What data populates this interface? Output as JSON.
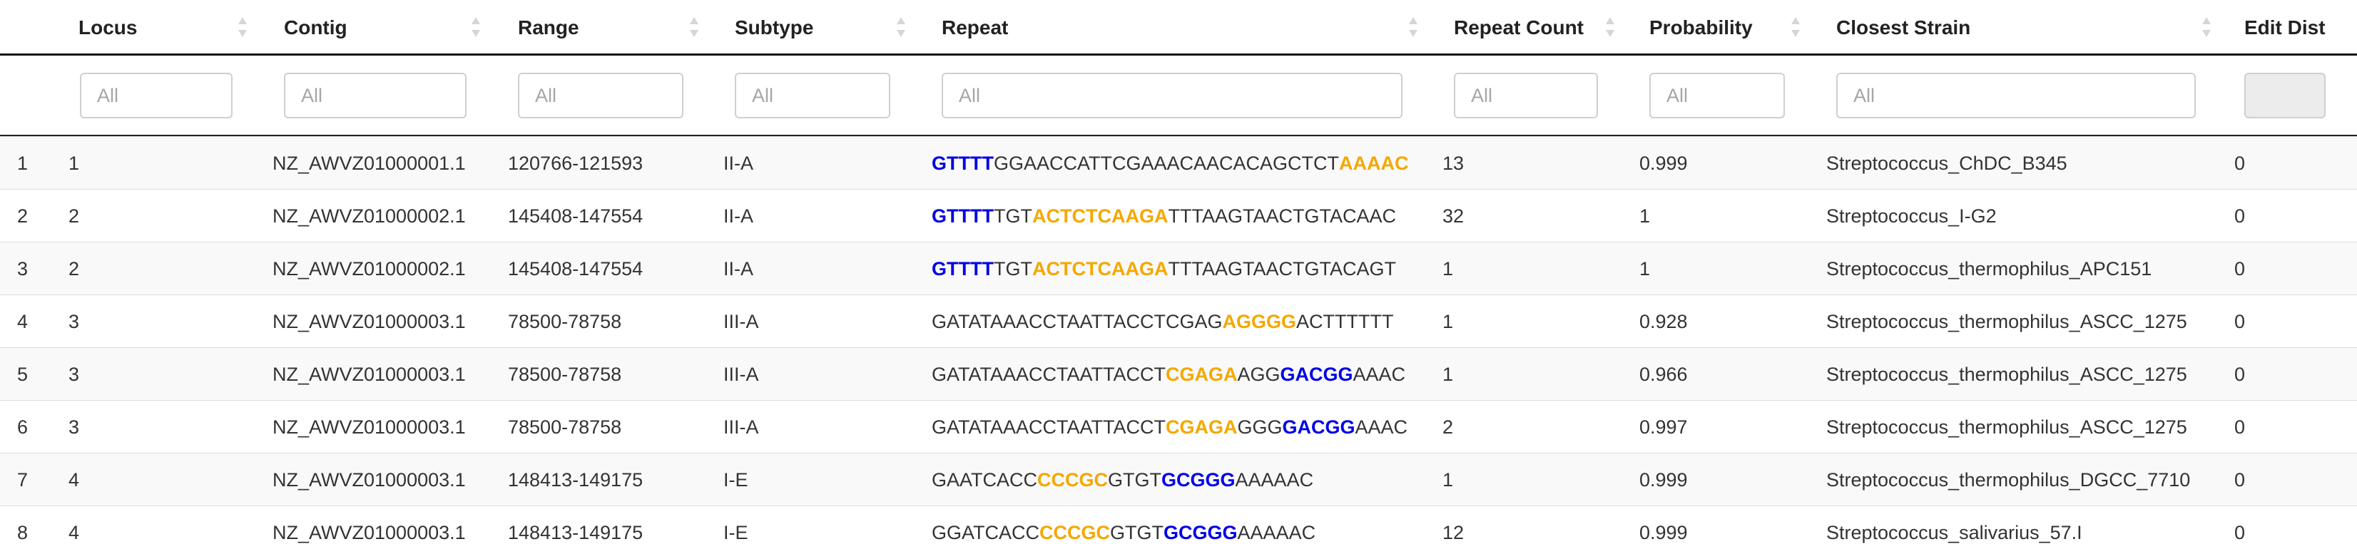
{
  "table": {
    "columns": [
      {
        "key": "index",
        "label": ""
      },
      {
        "key": "locus",
        "label": "Locus"
      },
      {
        "key": "contig",
        "label": "Contig"
      },
      {
        "key": "range",
        "label": "Range"
      },
      {
        "key": "subtype",
        "label": "Subtype"
      },
      {
        "key": "repeat",
        "label": "Repeat"
      },
      {
        "key": "repeat_count",
        "label": "Repeat Count"
      },
      {
        "key": "probability",
        "label": "Probability"
      },
      {
        "key": "closest_strain",
        "label": "Closest Strain"
      },
      {
        "key": "edit_dist",
        "label": "Edit Dist"
      }
    ],
    "filter_placeholder": "All",
    "highlight_colors": {
      "blue": "#0000e6",
      "orange": "#f5a700"
    },
    "rows": [
      {
        "index": "1",
        "locus": "1",
        "contig": "NZ_AWVZ01000001.1",
        "range": "120766-121593",
        "subtype": "II-A",
        "repeat": [
          {
            "text": "GTTTT",
            "style": "blue"
          },
          {
            "text": "GGAACCATTCGAAACAACACAGCTCT",
            "style": ""
          },
          {
            "text": "AAAAC",
            "style": "orange"
          }
        ],
        "repeat_count": "13",
        "probability": "0.999",
        "closest_strain": "Streptococcus_ChDC_B345",
        "edit_dist": "0"
      },
      {
        "index": "2",
        "locus": "2",
        "contig": "NZ_AWVZ01000002.1",
        "range": "145408-147554",
        "subtype": "II-A",
        "repeat": [
          {
            "text": "GTTTT",
            "style": "blue"
          },
          {
            "text": "TGT",
            "style": ""
          },
          {
            "text": "ACTCTCAAGA",
            "style": "orange"
          },
          {
            "text": "TTTAAGTAACTGTACAAC",
            "style": ""
          }
        ],
        "repeat_count": "32",
        "probability": "1",
        "closest_strain": "Streptococcus_I-G2",
        "edit_dist": "0"
      },
      {
        "index": "3",
        "locus": "2",
        "contig": "NZ_AWVZ01000002.1",
        "range": "145408-147554",
        "subtype": "II-A",
        "repeat": [
          {
            "text": "GTTTT",
            "style": "blue"
          },
          {
            "text": "TGT",
            "style": ""
          },
          {
            "text": "ACTCTCAAGA",
            "style": "orange"
          },
          {
            "text": "TTTAAGTAACTGTACAGT",
            "style": ""
          }
        ],
        "repeat_count": "1",
        "probability": "1",
        "closest_strain": "Streptococcus_thermophilus_APC151",
        "edit_dist": "0"
      },
      {
        "index": "4",
        "locus": "3",
        "contig": "NZ_AWVZ01000003.1",
        "range": "78500-78758",
        "subtype": "III-A",
        "repeat": [
          {
            "text": "GATATAAACCTAATTACCTCGAG",
            "style": ""
          },
          {
            "text": "AGGGG",
            "style": "orange"
          },
          {
            "text": "ACTTTTTT",
            "style": ""
          }
        ],
        "repeat_count": "1",
        "probability": "0.928",
        "closest_strain": "Streptococcus_thermophilus_ASCC_1275",
        "edit_dist": "0"
      },
      {
        "index": "5",
        "locus": "3",
        "contig": "NZ_AWVZ01000003.1",
        "range": "78500-78758",
        "subtype": "III-A",
        "repeat": [
          {
            "text": "GATATAAACCTAATTACCT",
            "style": ""
          },
          {
            "text": "CGAGA",
            "style": "orange"
          },
          {
            "text": "AGG",
            "style": ""
          },
          {
            "text": "GACGG",
            "style": "blue"
          },
          {
            "text": "AAAC",
            "style": ""
          }
        ],
        "repeat_count": "1",
        "probability": "0.966",
        "closest_strain": "Streptococcus_thermophilus_ASCC_1275",
        "edit_dist": "0"
      },
      {
        "index": "6",
        "locus": "3",
        "contig": "NZ_AWVZ01000003.1",
        "range": "78500-78758",
        "subtype": "III-A",
        "repeat": [
          {
            "text": "GATATAAACCTAATTACCT",
            "style": ""
          },
          {
            "text": "CGAGA",
            "style": "orange"
          },
          {
            "text": "GGG",
            "style": ""
          },
          {
            "text": "GACGG",
            "style": "blue"
          },
          {
            "text": "AAAC",
            "style": ""
          }
        ],
        "repeat_count": "2",
        "probability": "0.997",
        "closest_strain": "Streptococcus_thermophilus_ASCC_1275",
        "edit_dist": "0"
      },
      {
        "index": "7",
        "locus": "4",
        "contig": "NZ_AWVZ01000003.1",
        "range": "148413-149175",
        "subtype": "I-E",
        "repeat": [
          {
            "text": "GAATCACC",
            "style": ""
          },
          {
            "text": "CCCGC",
            "style": "orange"
          },
          {
            "text": "GTGT",
            "style": ""
          },
          {
            "text": "GCGGG",
            "style": "blue"
          },
          {
            "text": "AAAAAC",
            "style": ""
          }
        ],
        "repeat_count": "1",
        "probability": "0.999",
        "closest_strain": "Streptococcus_thermophilus_DGCC_7710",
        "edit_dist": "0"
      },
      {
        "index": "8",
        "locus": "4",
        "contig": "NZ_AWVZ01000003.1",
        "range": "148413-149175",
        "subtype": "I-E",
        "repeat": [
          {
            "text": "GGATCACC",
            "style": ""
          },
          {
            "text": "CCCGC",
            "style": "orange"
          },
          {
            "text": "GTGT",
            "style": ""
          },
          {
            "text": "GCGGG",
            "style": "blue"
          },
          {
            "text": "AAAAAC",
            "style": ""
          }
        ],
        "repeat_count": "12",
        "probability": "0.999",
        "closest_strain": "Streptococcus_salivarius_57.I",
        "edit_dist": "0"
      }
    ]
  }
}
